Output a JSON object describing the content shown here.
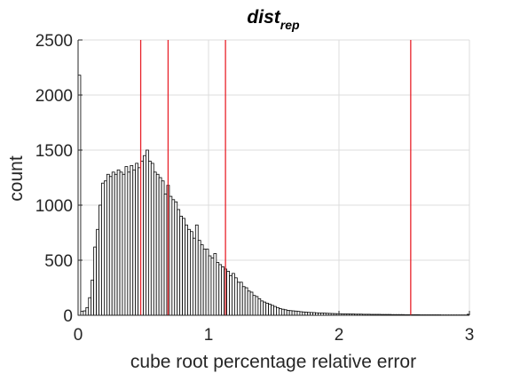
{
  "chart_data": {
    "type": "bar",
    "title": {
      "main": "dist",
      "subscript": "rep"
    },
    "xlabel": "cube root percentage relative error",
    "ylabel": "count",
    "xlim": [
      0,
      3
    ],
    "ylim": [
      0,
      2500
    ],
    "xticks": [
      0,
      1,
      2,
      3
    ],
    "yticks": [
      0,
      500,
      1000,
      1500,
      2000,
      2500
    ],
    "grid": true,
    "bin_width": 0.02,
    "series": [
      {
        "values": [
          2180,
          35,
          40,
          70,
          160,
          320,
          620,
          780,
          1000,
          1200,
          1220,
          1280,
          1260,
          1300,
          1280,
          1320,
          1300,
          1280,
          1350,
          1300,
          1360,
          1320,
          1380,
          1340,
          1400,
          1450,
          1500,
          1400,
          1380,
          1300,
          1280,
          1250,
          1220,
          1100,
          1180,
          1080,
          1050,
          1030,
          960,
          900,
          880,
          820,
          780,
          760,
          700,
          820,
          680,
          640,
          600,
          600,
          540,
          520,
          560,
          480,
          460,
          440,
          420,
          400,
          360,
          380,
          340,
          300,
          300,
          260,
          250,
          220,
          210,
          180,
          170,
          150,
          130,
          120,
          110,
          100,
          90,
          80,
          70,
          60,
          55,
          50,
          45,
          42,
          40,
          38,
          35,
          32,
          30,
          28,
          26,
          25,
          24,
          22,
          20,
          20,
          19,
          18,
          17,
          16,
          15,
          14,
          14,
          13,
          12,
          12,
          11,
          11,
          10,
          10,
          10,
          9,
          9,
          9,
          8,
          8,
          8,
          8,
          7,
          7,
          7,
          7,
          6,
          6,
          6,
          6,
          6,
          5,
          5,
          5,
          5,
          5,
          5,
          4,
          4,
          4,
          4,
          4,
          4,
          4,
          4,
          3,
          3,
          3,
          3,
          3,
          3,
          3,
          3,
          3,
          3
        ]
      }
    ],
    "vlines": {
      "color": "#e8222a",
      "x": [
        0.48,
        0.69,
        1.13,
        2.55
      ]
    },
    "colors": {
      "bar_fill": "#ffffff",
      "bar_edge": "#000000",
      "grid": "#dcdcdc",
      "axis": "#262626"
    }
  }
}
